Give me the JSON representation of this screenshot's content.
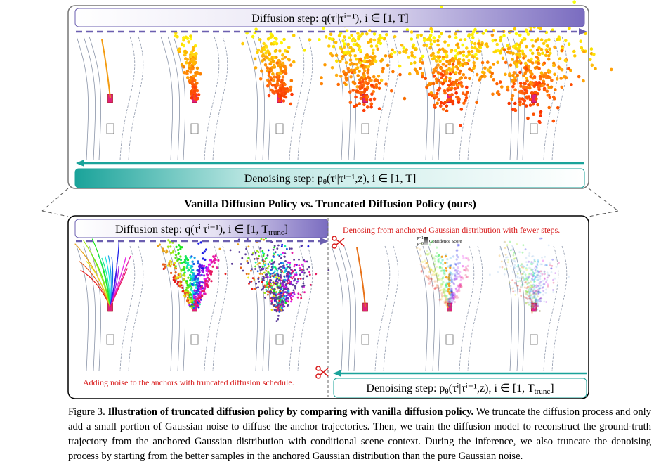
{
  "top_panel": {
    "diffusion_label": [
      "Diffusion step: q(τⁱ|τⁱ⁻¹), i ∈ [1, T]"
    ],
    "denoising_label": [
      "Denoising step: p",
      "θ",
      "(τⁱ|τⁱ⁻¹,z), i ∈ [1, T]"
    ]
  },
  "comparison_title": "Vanilla Diffusion Policy vs. Truncated Diffusion Policy (ours)",
  "bottom_panel": {
    "diffusion_label": [
      "Diffusion step: q(τⁱ|τⁱ⁻¹), i ∈ [1, T",
      "trunc",
      "]"
    ],
    "denoising_label": [
      "Denoising step: p",
      "θ",
      "(τⁱ|τⁱ⁻¹,z), i ∈ [1, T",
      "trunc",
      "]"
    ],
    "right_note": "Denosing from anchored Gaussian distribution with fewer steps.",
    "left_note": "Adding noise to the anchors with truncated diffusion schedule.",
    "legend": {
      "high": "p=1",
      "low": "p=0",
      "title": "Confidence Score"
    }
  },
  "caption": {
    "label": "Figure 3.",
    "title": "Illustration of truncated diffusion policy by comparing with vanilla diffusion policy.",
    "body": "We truncate the diffusion process and only add a small portion of Gaussian noise to diffuse the anchor trajectories. Then, we train the diffusion model to reconstruct the ground-truth trajectory from the anchored Gaussian distribution with conditional scene context. During the inference, we also truncate the denoising process by starting from the better samples in the anchored Gaussian distribution than the pure Gaussian noise."
  }
}
